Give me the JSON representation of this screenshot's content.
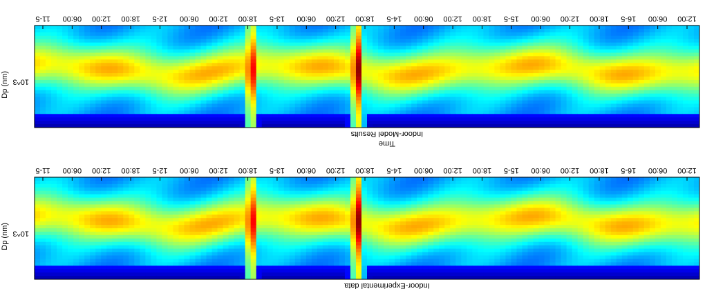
{
  "chart_data": [
    {
      "type": "heatmap",
      "title": "Indoor-Experimental data",
      "xlabel": "",
      "ylabel": "Dp (nm)",
      "ytick_labels": [
        "10^3"
      ],
      "x_tick_labels": [
        "11-5",
        "06:00",
        "12:00",
        "18:00",
        "12-5",
        "06:00",
        "12:00",
        "18:00",
        "13-5",
        "06:00",
        "12:00",
        "18:00",
        "14-5",
        "06:00",
        "12:00",
        "18:00",
        "15-5",
        "06:00",
        "12:00",
        "18:00",
        "16-5",
        "06:00",
        "12:00"
      ],
      "colormap": "jet",
      "orientation": "image displayed rotated 180 degrees"
    },
    {
      "type": "heatmap",
      "title": "Indoor-Model Results",
      "xlabel": "Time",
      "ylabel": "Dp (nm)",
      "ytick_labels": [
        "10^3"
      ],
      "x_tick_labels": [
        "11-5",
        "06:00",
        "12:00",
        "18:00",
        "12-5",
        "06:00",
        "12:00",
        "18:00",
        "13-5",
        "06:00",
        "12:00",
        "18:00",
        "14-5",
        "06:00",
        "12:00",
        "18:00",
        "15-5",
        "06:00",
        "12:00",
        "18:00",
        "16-5",
        "06:00",
        "12:00"
      ],
      "colormap": "jet",
      "orientation": "image displayed rotated 180 degrees"
    }
  ],
  "colors": {
    "low": "#00008f",
    "mid_low": "#00aaff",
    "mid": "#7fff7f",
    "mid_high": "#ffdd00",
    "high": "#800000"
  }
}
